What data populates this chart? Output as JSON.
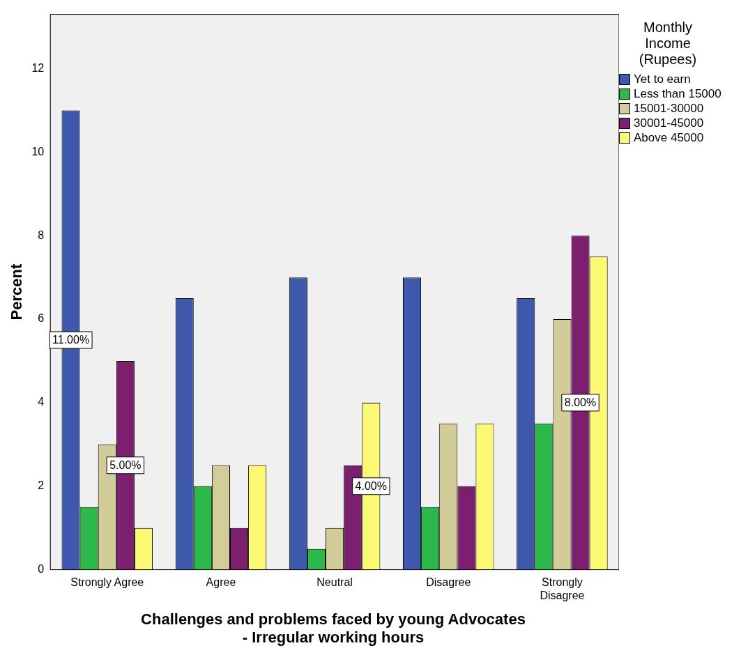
{
  "chart_data": {
    "type": "bar",
    "xlabel": "Challenges and problems faced by young Advocates - Irregular working hours",
    "ylabel": "Percent",
    "legend_title": "Monthly Income (Rupees)",
    "legend": "right",
    "categories": [
      "Strongly Agree",
      "Agree",
      "Neutral",
      "Disagree",
      "Strongly Disagree"
    ],
    "ylim": [
      0,
      13.3
    ],
    "yticks": [
      0,
      2,
      4,
      6,
      8,
      10,
      12
    ],
    "grid": false,
    "series": [
      {
        "name": "Yet to earn",
        "color": "#3e58ac",
        "values": [
          11,
          6.5,
          7,
          7,
          6.5
        ],
        "value_labels": [
          "11.00%",
          null,
          null,
          null,
          null
        ]
      },
      {
        "name": "Less than 15000",
        "color": "#2db84c",
        "values": [
          1.5,
          2,
          0.5,
          1.5,
          3.5
        ],
        "value_labels": [
          null,
          null,
          null,
          null,
          null
        ]
      },
      {
        "name": "15001-30000",
        "color": "#d2cc98",
        "values": [
          3,
          2.5,
          1,
          3.5,
          6
        ],
        "value_labels": [
          null,
          null,
          null,
          null,
          null
        ]
      },
      {
        "name": "30001-45000",
        "color": "#7b1f6e",
        "values": [
          5,
          1,
          2.5,
          2,
          8
        ],
        "value_labels": [
          "5.00%",
          null,
          null,
          null,
          "8.00%"
        ]
      },
      {
        "name": "Above 45000",
        "color": "#fbf873",
        "values": [
          1,
          2.5,
          4,
          3.5,
          7.5
        ],
        "value_labels": [
          null,
          null,
          "4.00%",
          null,
          null
        ]
      }
    ]
  }
}
